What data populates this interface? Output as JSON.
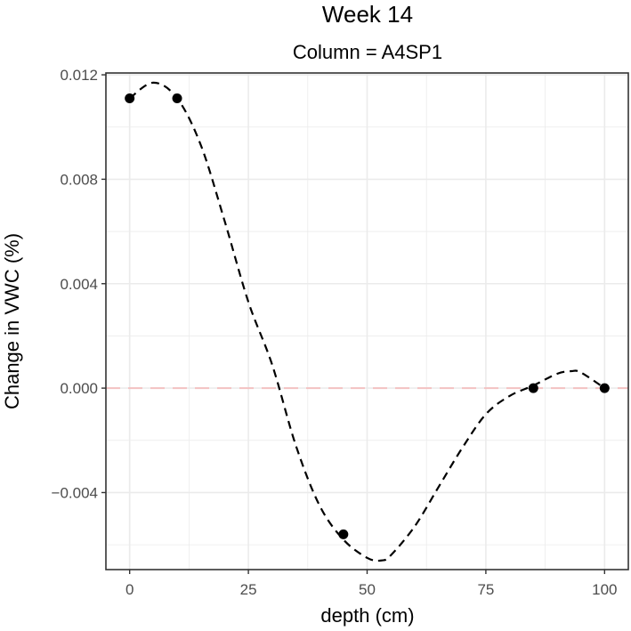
{
  "chart_data": {
    "type": "line",
    "title": "Week 14",
    "subtitle": "Column = A4SP1",
    "xlabel": "depth (cm)",
    "ylabel": "Change in VWC (%)",
    "xlim": [
      -5,
      105
    ],
    "ylim": [
      -0.00695,
      0.01207
    ],
    "x_ticks": [
      0,
      25,
      50,
      75,
      100
    ],
    "x_tick_labels": [
      "0",
      "25",
      "50",
      "75",
      "100"
    ],
    "y_ticks": [
      -0.004,
      0.0,
      0.004,
      0.008,
      0.012
    ],
    "y_tick_labels": [
      "−0.004",
      "0.000",
      "0.004",
      "0.008",
      "0.012"
    ],
    "grid": true,
    "points": [
      {
        "x": 0,
        "y": 0.0111
      },
      {
        "x": 10,
        "y": 0.0111
      },
      {
        "x": 45,
        "y": -0.0056
      },
      {
        "x": 85,
        "y": 0.0
      },
      {
        "x": 100,
        "y": 0.0
      }
    ],
    "fitted_curve": {
      "style": "dashed",
      "x": [
        0,
        5,
        10,
        15,
        20,
        25,
        30,
        35,
        40,
        45,
        50,
        53,
        55,
        60,
        65,
        70,
        75,
        80,
        85,
        90,
        93,
        95,
        100
      ],
      "y": [
        0.0111,
        0.0117,
        0.0111,
        0.0093,
        0.0064,
        0.0033,
        0.0009,
        -0.0022,
        -0.0045,
        -0.0058,
        -0.0065,
        -0.0066,
        -0.0064,
        -0.0053,
        -0.0038,
        -0.0023,
        -0.001,
        -0.0003,
        0.0001,
        0.00055,
        0.00065,
        0.0006,
        0.0
      ]
    },
    "reference_line": {
      "y": 0.0,
      "style": "dashed",
      "color": "#f4c2c2"
    }
  },
  "colors": {
    "point": "#000000",
    "curve": "#000000",
    "reference": "#f4c2c2",
    "grid": "#ebebeb",
    "panel_border": "#333333"
  }
}
